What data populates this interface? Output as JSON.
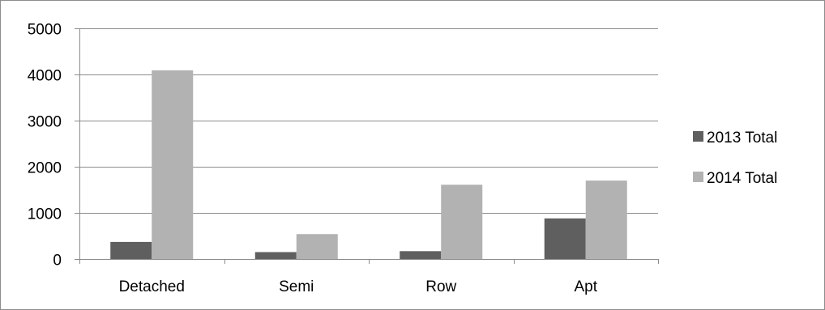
{
  "chart_data": {
    "type": "bar",
    "categories": [
      "Detached",
      "Semi",
      "Row",
      "Apt"
    ],
    "series": [
      {
        "name": "2013 Total",
        "values": [
          370,
          150,
          170,
          880
        ],
        "color": "#5f5f5f"
      },
      {
        "name": "2014 Total",
        "values": [
          4090,
          540,
          1610,
          1700
        ],
        "color": "#b2b2b2"
      }
    ],
    "title": "",
    "xlabel": "",
    "ylabel": "",
    "ylim": [
      0,
      5000
    ],
    "yticks": [
      "0",
      "1000",
      "2000",
      "3000",
      "4000",
      "5000"
    ],
    "grid": true,
    "legend_position": "right"
  }
}
